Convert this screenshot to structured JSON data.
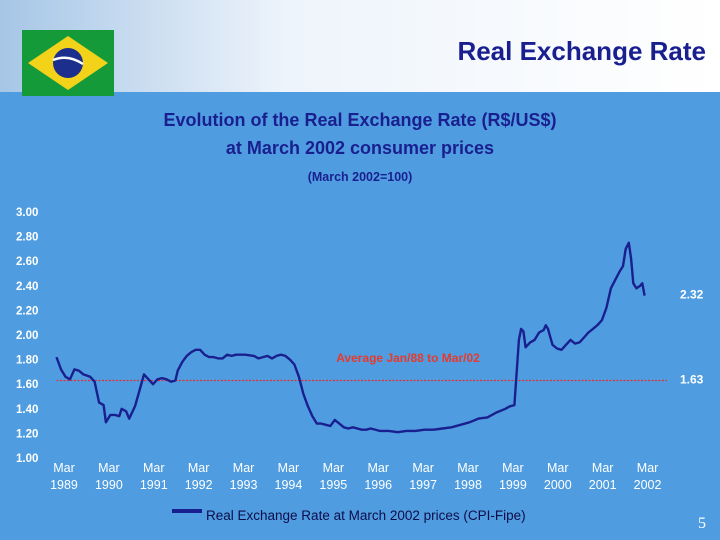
{
  "header": {
    "title": "Real Exchange Rate",
    "flag_icon": "brazil-flag-icon"
  },
  "chart_title_line1": "Evolution of the Real Exchange Rate (R$/US$)",
  "chart_title_line2": "at March 2002 consumer prices",
  "chart_subtitle": "(March 2002=100)",
  "legend_label": "Real Exchange Rate at March 2002 prices (CPI-Fipe)",
  "page_number": "5",
  "colors": {
    "background": "#4f9de0",
    "series": "#1a1f8f",
    "average_line": "#e03030",
    "title": "#1a1f8f"
  },
  "chart_data": {
    "type": "line",
    "ylim": [
      1.0,
      3.0
    ],
    "yticks": [
      "1.00",
      "1.20",
      "1.40",
      "1.60",
      "1.80",
      "2.00",
      "2.20",
      "2.40",
      "2.60",
      "2.80",
      "3.00"
    ],
    "xticks": [
      {
        "label1": "Mar",
        "label2": "1989",
        "t": 1989.167
      },
      {
        "label1": "Mar",
        "label2": "1990",
        "t": 1990.167
      },
      {
        "label1": "Mar",
        "label2": "1991",
        "t": 1991.167
      },
      {
        "label1": "Mar",
        "label2": "1992",
        "t": 1992.167
      },
      {
        "label1": "Mar",
        "label2": "1993",
        "t": 1993.167
      },
      {
        "label1": "Mar",
        "label2": "1994",
        "t": 1994.167
      },
      {
        "label1": "Mar",
        "label2": "1995",
        "t": 1995.167
      },
      {
        "label1": "Mar",
        "label2": "1996",
        "t": 1996.167
      },
      {
        "label1": "Mar",
        "label2": "1997",
        "t": 1997.167
      },
      {
        "label1": "Mar",
        "label2": "1998",
        "t": 1998.167
      },
      {
        "label1": "Mar",
        "label2": "1999",
        "t": 1999.167
      },
      {
        "label1": "Mar",
        "label2": "2000",
        "t": 2000.167
      },
      {
        "label1": "Mar",
        "label2": "2001",
        "t": 2001.167
      },
      {
        "label1": "Mar",
        "label2": "2002",
        "t": 2002.167
      }
    ],
    "xlim": [
      1988.9,
      2002.6
    ],
    "grid": false,
    "series": [
      {
        "name": "Real Exchange Rate at March 2002 prices (CPI-Fipe)",
        "points": [
          [
            1989.0,
            1.82
          ],
          [
            1989.1,
            1.72
          ],
          [
            1989.2,
            1.66
          ],
          [
            1989.3,
            1.64
          ],
          [
            1989.4,
            1.72
          ],
          [
            1989.5,
            1.71
          ],
          [
            1989.6,
            1.68
          ],
          [
            1989.75,
            1.66
          ],
          [
            1989.85,
            1.62
          ],
          [
            1989.95,
            1.45
          ],
          [
            1990.05,
            1.43
          ],
          [
            1990.1,
            1.29
          ],
          [
            1990.2,
            1.35
          ],
          [
            1990.3,
            1.35
          ],
          [
            1990.4,
            1.34
          ],
          [
            1990.45,
            1.4
          ],
          [
            1990.55,
            1.38
          ],
          [
            1990.62,
            1.32
          ],
          [
            1990.75,
            1.42
          ],
          [
            1990.85,
            1.55
          ],
          [
            1990.95,
            1.68
          ],
          [
            1991.05,
            1.64
          ],
          [
            1991.15,
            1.6
          ],
          [
            1991.25,
            1.64
          ],
          [
            1991.35,
            1.65
          ],
          [
            1991.45,
            1.64
          ],
          [
            1991.55,
            1.62
          ],
          [
            1991.65,
            1.63
          ],
          [
            1991.7,
            1.71
          ],
          [
            1991.8,
            1.78
          ],
          [
            1991.9,
            1.83
          ],
          [
            1992.0,
            1.86
          ],
          [
            1992.1,
            1.88
          ],
          [
            1992.2,
            1.88
          ],
          [
            1992.3,
            1.84
          ],
          [
            1992.4,
            1.82
          ],
          [
            1992.5,
            1.82
          ],
          [
            1992.6,
            1.81
          ],
          [
            1992.7,
            1.81
          ],
          [
            1992.8,
            1.84
          ],
          [
            1992.9,
            1.83
          ],
          [
            1993.0,
            1.84
          ],
          [
            1993.2,
            1.84
          ],
          [
            1993.4,
            1.83
          ],
          [
            1993.5,
            1.81
          ],
          [
            1993.6,
            1.82
          ],
          [
            1993.7,
            1.83
          ],
          [
            1993.8,
            1.81
          ],
          [
            1993.9,
            1.83
          ],
          [
            1994.0,
            1.84
          ],
          [
            1994.1,
            1.83
          ],
          [
            1994.2,
            1.8
          ],
          [
            1994.3,
            1.76
          ],
          [
            1994.4,
            1.66
          ],
          [
            1994.5,
            1.52
          ],
          [
            1994.6,
            1.42
          ],
          [
            1994.7,
            1.34
          ],
          [
            1994.8,
            1.28
          ],
          [
            1994.9,
            1.28
          ],
          [
            1995.0,
            1.27
          ],
          [
            1995.1,
            1.26
          ],
          [
            1995.2,
            1.31
          ],
          [
            1995.3,
            1.28
          ],
          [
            1995.4,
            1.25
          ],
          [
            1995.5,
            1.24
          ],
          [
            1995.6,
            1.25
          ],
          [
            1995.7,
            1.24
          ],
          [
            1995.8,
            1.23
          ],
          [
            1995.9,
            1.23
          ],
          [
            1996.0,
            1.24
          ],
          [
            1996.2,
            1.22
          ],
          [
            1996.4,
            1.22
          ],
          [
            1996.6,
            1.21
          ],
          [
            1996.8,
            1.22
          ],
          [
            1997.0,
            1.22
          ],
          [
            1997.2,
            1.23
          ],
          [
            1997.4,
            1.23
          ],
          [
            1997.6,
            1.24
          ],
          [
            1997.8,
            1.25
          ],
          [
            1998.0,
            1.27
          ],
          [
            1998.2,
            1.29
          ],
          [
            1998.4,
            1.32
          ],
          [
            1998.6,
            1.33
          ],
          [
            1998.8,
            1.37
          ],
          [
            1999.0,
            1.4
          ],
          [
            1999.1,
            1.42
          ],
          [
            1999.2,
            1.43
          ],
          [
            1999.3,
            1.96
          ],
          [
            1999.35,
            2.05
          ],
          [
            1999.4,
            2.03
          ],
          [
            1999.45,
            1.9
          ],
          [
            1999.55,
            1.94
          ],
          [
            1999.65,
            1.96
          ],
          [
            1999.75,
            2.02
          ],
          [
            1999.85,
            2.04
          ],
          [
            1999.9,
            2.08
          ],
          [
            1999.95,
            2.05
          ],
          [
            2000.05,
            1.92
          ],
          [
            2000.15,
            1.89
          ],
          [
            2000.25,
            1.88
          ],
          [
            2000.35,
            1.92
          ],
          [
            2000.45,
            1.96
          ],
          [
            2000.55,
            1.93
          ],
          [
            2000.65,
            1.94
          ],
          [
            2000.75,
            1.98
          ],
          [
            2000.85,
            2.02
          ],
          [
            2000.95,
            2.05
          ],
          [
            2001.05,
            2.08
          ],
          [
            2001.15,
            2.12
          ],
          [
            2001.25,
            2.22
          ],
          [
            2001.35,
            2.38
          ],
          [
            2001.45,
            2.45
          ],
          [
            2001.55,
            2.52
          ],
          [
            2001.62,
            2.56
          ],
          [
            2001.68,
            2.7
          ],
          [
            2001.75,
            2.75
          ],
          [
            2001.8,
            2.62
          ],
          [
            2001.85,
            2.42
          ],
          [
            2001.92,
            2.38
          ],
          [
            2002.0,
            2.4
          ],
          [
            2002.05,
            2.42
          ],
          [
            2002.1,
            2.32
          ]
        ]
      }
    ],
    "average": {
      "label": "Average Jan/88 to Mar/02",
      "value": 1.63
    },
    "annotations": [
      {
        "text": "2.32",
        "value": 2.32
      },
      {
        "text": "1.63",
        "value": 1.63
      }
    ]
  }
}
